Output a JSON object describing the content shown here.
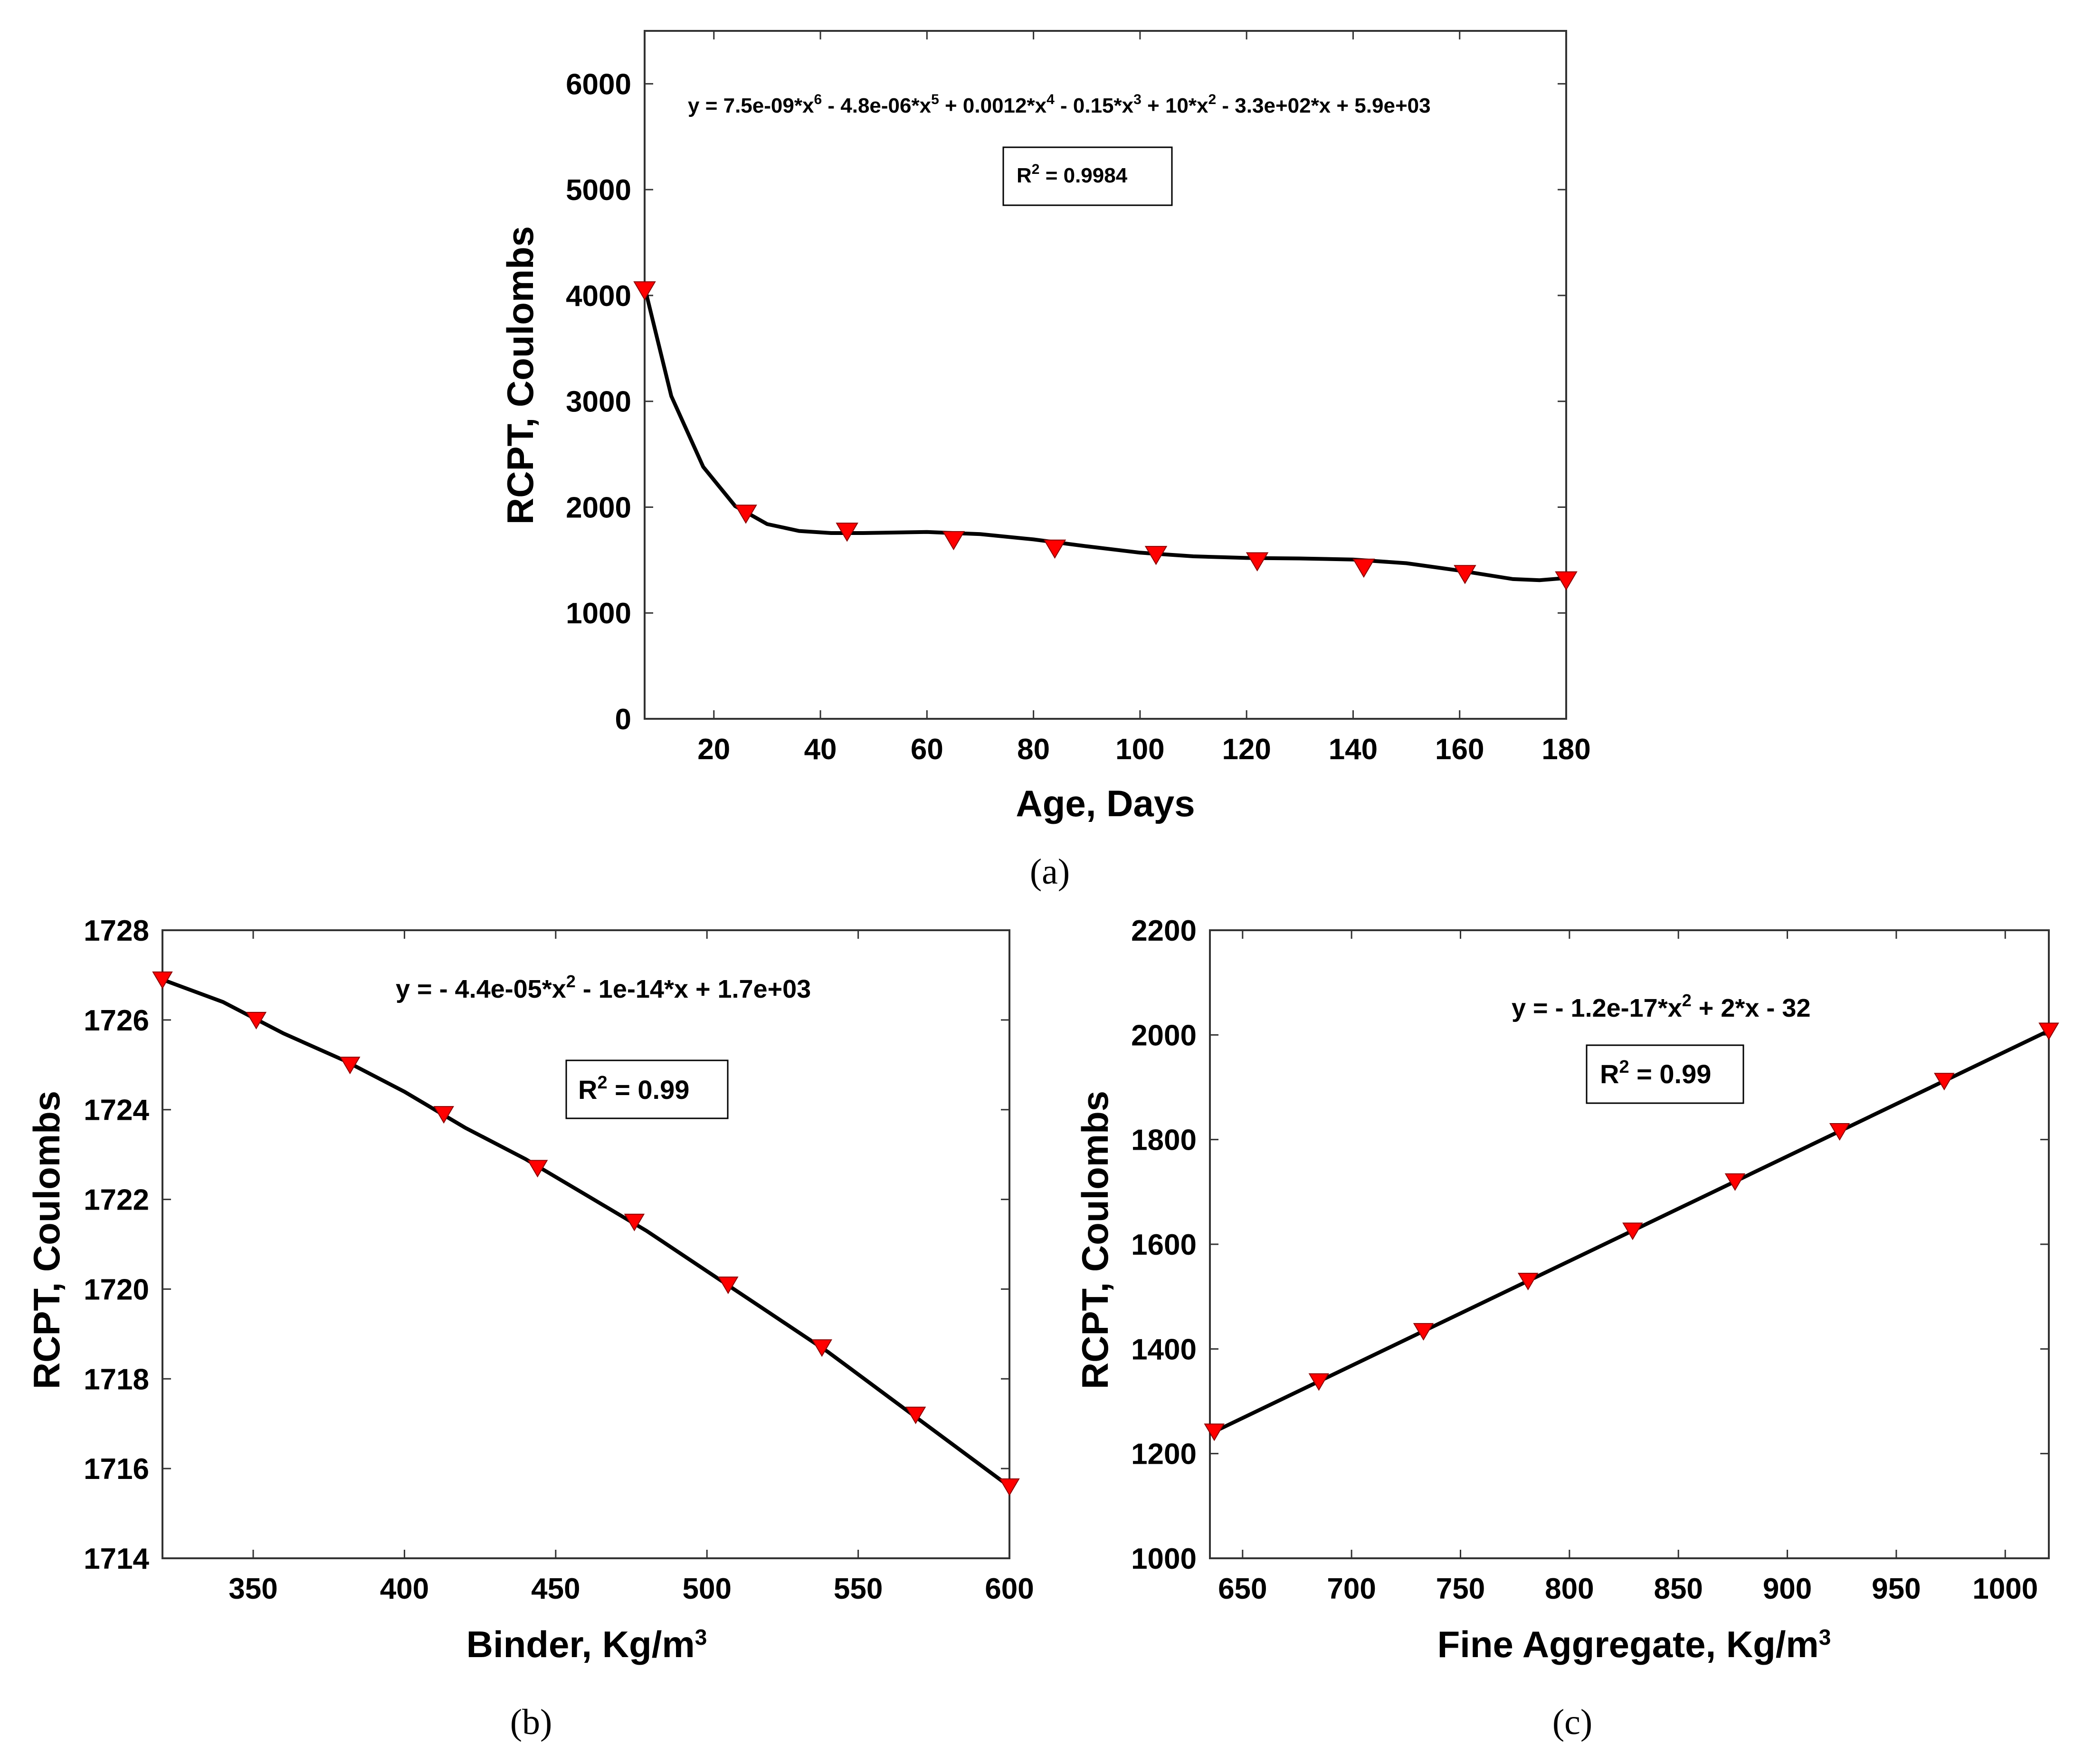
{
  "chart_data": [
    {
      "id": "a",
      "type": "scatter",
      "caption": "(a)",
      "xlabel": "Age, Days",
      "ylabel": "RCPT, Coulombs",
      "xlim": [
        7,
        180
      ],
      "ylim": [
        0,
        6500
      ],
      "xticks": [
        20,
        40,
        60,
        80,
        100,
        120,
        140,
        160,
        180
      ],
      "yticks": [
        0,
        1000,
        2000,
        3000,
        4000,
        5000,
        6000
      ],
      "equation": "y = 7.5e-09*x^6 - 4.8e-06*x^5 + 0.0012*x^4 - 0.15*x^3 + 10*x^2 - 3.3e+02*x + 5.9e+03",
      "r2_text": "R^2 = 0.9984",
      "x": [
        7,
        26,
        45,
        65,
        84,
        103,
        122,
        142,
        161,
        180
      ],
      "y": [
        4050,
        1940,
        1770,
        1690,
        1610,
        1550,
        1490,
        1430,
        1370,
        1310
      ],
      "curve": {
        "x": [
          7,
          12,
          18,
          24,
          30,
          36,
          42,
          48,
          54,
          60,
          70,
          80,
          90,
          100,
          110,
          120,
          130,
          140,
          150,
          160,
          170,
          175,
          180
        ],
        "y": [
          4080,
          3050,
          2380,
          2010,
          1840,
          1775,
          1755,
          1755,
          1760,
          1765,
          1745,
          1695,
          1630,
          1570,
          1535,
          1520,
          1515,
          1505,
          1470,
          1400,
          1320,
          1310,
          1330
        ]
      }
    },
    {
      "id": "b",
      "type": "scatter",
      "caption": "(b)",
      "xlabel": "Binder, Kg/m^3",
      "ylabel": "RCPT, Coulombs",
      "xlim": [
        320,
        600
      ],
      "ylim": [
        1714,
        1728
      ],
      "xticks": [
        350,
        400,
        450,
        500,
        550,
        600
      ],
      "yticks": [
        1714,
        1716,
        1718,
        1720,
        1722,
        1724,
        1726,
        1728
      ],
      "equation": "y = - 4.4e-05*x^2 - 1e-14*x + 1.7e+03",
      "r2_text": "R^2 = 0.99",
      "x": [
        320,
        351,
        382,
        413,
        444,
        476,
        507,
        538,
        569,
        600
      ],
      "y": [
        1726.9,
        1726.0,
        1725.0,
        1723.9,
        1722.7,
        1721.5,
        1720.1,
        1718.7,
        1717.2,
        1715.6
      ],
      "curve": {
        "x": [
          320,
          340,
          360,
          380,
          400,
          420,
          440,
          460,
          480,
          500,
          520,
          540,
          560,
          580,
          600
        ],
        "y": [
          1726.9,
          1726.4,
          1725.7,
          1725.1,
          1724.4,
          1723.6,
          1722.9,
          1722.1,
          1721.3,
          1720.4,
          1719.5,
          1718.6,
          1717.6,
          1716.6,
          1715.6
        ]
      }
    },
    {
      "id": "c",
      "type": "scatter",
      "caption": "(c)",
      "xlabel": "Fine Aggregate, Kg/m^3",
      "ylabel": "RCPT, Coulombs",
      "xlim": [
        635,
        1020
      ],
      "ylim": [
        1000,
        2200
      ],
      "xticks": [
        650,
        700,
        750,
        800,
        850,
        900,
        950,
        1000
      ],
      "yticks": [
        1000,
        1200,
        1400,
        1600,
        1800,
        2000,
        2200
      ],
      "equation": "y = - 1.2e-17*x^2 + 2*x - 32",
      "r2_text": "R^2 = 0.99",
      "x": [
        637,
        685,
        733,
        781,
        829,
        876,
        924,
        972,
        1020
      ],
      "y": [
        1242,
        1338,
        1434,
        1530,
        1626,
        1720,
        1816,
        1912,
        2008
      ],
      "curve": {
        "x": [
          635,
          1020
        ],
        "y": [
          1238,
          2008
        ]
      }
    }
  ],
  "labels": {
    "a": {
      "eq_parts": [
        "y = 7.5e-09*x",
        "6",
        " - 4.8e-06*x",
        "5",
        " + 0.0012*x",
        "4",
        " - 0.15*x",
        "3",
        " + 10*x",
        "2",
        " - 3.3e+02*x + 5.9e+03"
      ],
      "r2_parts": [
        "R",
        "2",
        " = 0.9984"
      ],
      "xlabel_parts": [
        "Age, Days"
      ],
      "ylabel": "RCPT, Coulombs",
      "caption": "(a)"
    },
    "b": {
      "eq_parts": [
        "y = - 4.4e-05*x",
        "2",
        " - 1e-14*x + 1.7e+03"
      ],
      "r2_parts": [
        "R",
        "2",
        " = 0.99"
      ],
      "xlabel_parts": [
        "Binder, Kg/m",
        "3"
      ],
      "ylabel": "RCPT, Coulombs",
      "caption": "(b)"
    },
    "c": {
      "eq_parts": [
        "y = - 1.2e-17*x",
        "2",
        " + 2*x - 32"
      ],
      "r2_parts": [
        "R",
        "2",
        " = 0.99"
      ],
      "xlabel_parts": [
        "Fine Aggregate, Kg/m",
        "3"
      ],
      "ylabel": "RCPT, Coulombs",
      "caption": "(c)"
    }
  },
  "colors": {
    "marker": "#ff0000",
    "marker_edge": "#8b0000",
    "line": "#000000",
    "frame": "#333333",
    "background": "#ffffff"
  }
}
